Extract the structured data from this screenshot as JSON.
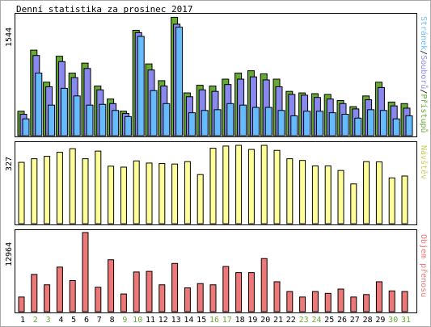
{
  "chart_data": {
    "type": "bar",
    "title": "Denní statistika za prosinec 2017",
    "categories": [
      "1",
      "2",
      "3",
      "4",
      "5",
      "6",
      "7",
      "8",
      "9",
      "10",
      "11",
      "12",
      "13",
      "14",
      "15",
      "16",
      "17",
      "18",
      "19",
      "20",
      "21",
      "22",
      "23",
      "24",
      "25",
      "26",
      "27",
      "28",
      "29",
      "30",
      "31"
    ],
    "weekend_days": [
      "2",
      "3",
      "9",
      "10",
      "16",
      "17",
      "23",
      "24",
      "30",
      "31"
    ],
    "colors": {
      "pristupu": "#66aa33",
      "souboru": "#8888ee",
      "stranek": "#66bbff",
      "navstev": "#ffff99",
      "objem": "#ee7777",
      "weekend_label": "#66aa33",
      "frame": "#000000"
    },
    "panels": [
      {
        "id": "hits",
        "ymax_label": "1544",
        "ylim": [
          0,
          1544
        ],
        "legend": [
          {
            "key": "stranek",
            "label": "Stránek"
          },
          {
            "key": "souboru",
            "label": "Souborů"
          },
          {
            "key": "pristupu",
            "label": "Přístupů"
          }
        ],
        "legend_separator": "/",
        "series": [
          {
            "name": "Přístupů",
            "key": "pristupu",
            "values": [
              320,
              1120,
              700,
              1040,
              820,
              950,
              650,
              480,
              320,
              1380,
              940,
              720,
              1550,
              560,
              660,
              650,
              740,
              820,
              850,
              810,
              740,
              580,
              560,
              550,
              540,
              460,
              380,
              520,
              700,
              440,
              420
            ]
          },
          {
            "name": "Souborů",
            "key": "souboru",
            "values": [
              280,
              1050,
              640,
              970,
              760,
              880,
              600,
              420,
              290,
              1350,
              860,
              650,
              1460,
              510,
              600,
              580,
              670,
              740,
              770,
              730,
              640,
              540,
              530,
              500,
              480,
              420,
              350,
              470,
              630,
              390,
              360
            ]
          },
          {
            "name": "Stránek",
            "key": "stranek",
            "values": [
              220,
              820,
              400,
              620,
              520,
              400,
              410,
              330,
              250,
              1300,
              590,
              420,
              1420,
              300,
              330,
              340,
              420,
              400,
              370,
              370,
              330,
              260,
              320,
              320,
              300,
              280,
              230,
              340,
              330,
              220,
              260
            ]
          }
        ]
      },
      {
        "id": "visits",
        "ymax_label": "327",
        "ylim": [
          0,
          327
        ],
        "legend": [
          {
            "key": "navstev",
            "label": "Návštěv"
          }
        ],
        "series": [
          {
            "name": "Návštěv",
            "key": "navstev",
            "values": [
              256,
              271,
              281,
              298,
              313,
              271,
              303,
              240,
              236,
              262,
              253,
              251,
              249,
              259,
              205,
              315,
              324,
              327,
              310,
              327,
              306,
              271,
              264,
              241,
              241,
              222,
              166,
              259,
              258,
              191,
              199
            ]
          }
        ]
      },
      {
        "id": "volume",
        "ymax_label": "12964",
        "ylim": [
          0,
          12964
        ],
        "legend": [
          {
            "key": "objem",
            "label": "Objem přenosu"
          }
        ],
        "series": [
          {
            "name": "Objem přenosu",
            "key": "objem",
            "values": [
              2400,
              6100,
              4400,
              7300,
              5100,
              12964,
              4000,
              8500,
              2900,
              6500,
              6600,
              4400,
              7900,
              3900,
              4600,
              4400,
              7400,
              6400,
              6400,
              8700,
              4900,
              3300,
              2400,
              3300,
              3000,
              3700,
              2400,
              2800,
              4900,
              3400,
              3300
            ]
          }
        ]
      }
    ]
  }
}
